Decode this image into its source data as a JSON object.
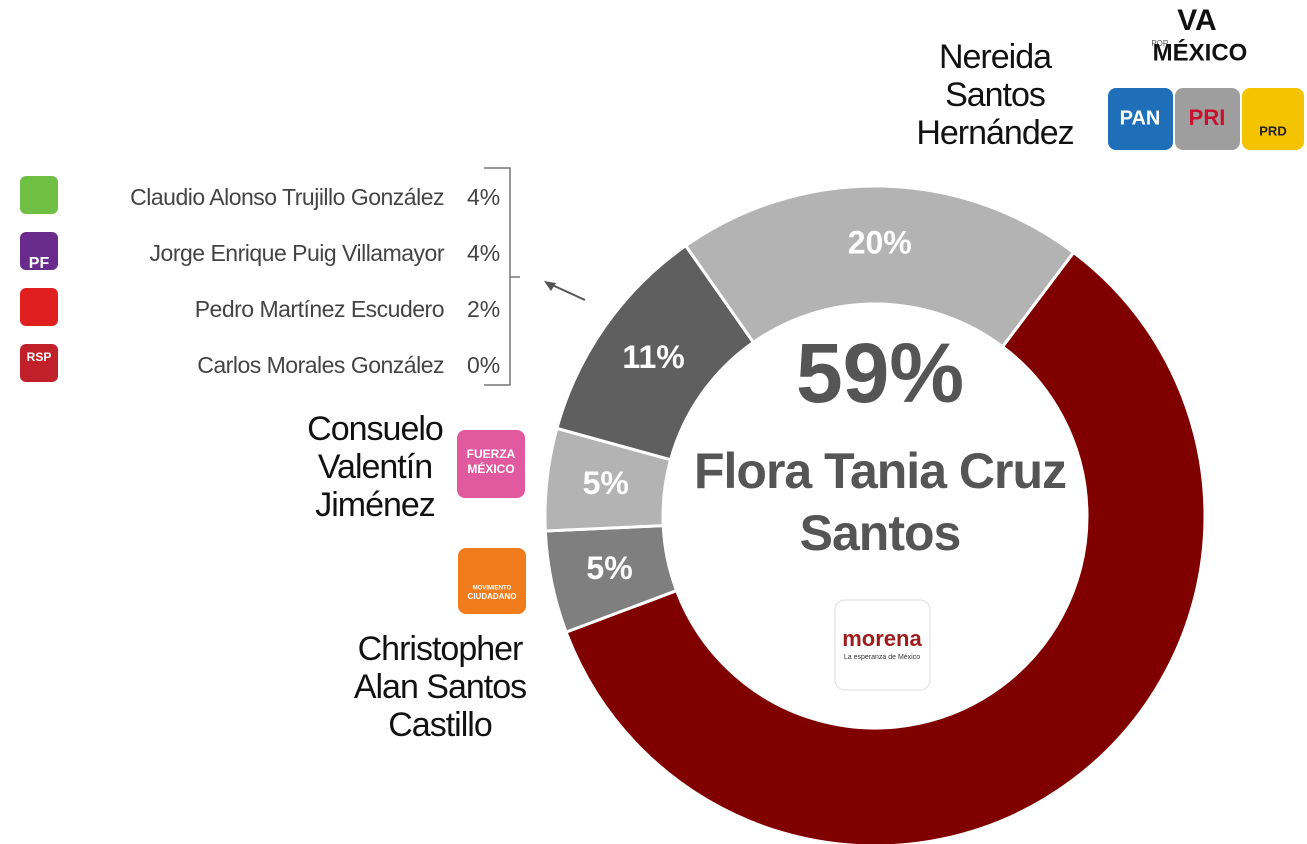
{
  "chart_data": {
    "type": "donut",
    "series": [
      {
        "name": "Flora Tania Cruz Santos",
        "color": "#800000"
      },
      {
        "name": "Christopher Alan Santos Castillo",
        "color": "#7f7f7f"
      },
      {
        "name": "Consuelo Valentín Jiménez",
        "color": "#b3b3b3"
      },
      {
        "name": null,
        "color": "#5f5f5f"
      },
      {
        "name": "Nereida Santos Hernández",
        "color": "#b3b3b3"
      }
    ],
    "values": [
      59,
      5,
      5,
      11,
      20
    ],
    "value_labels": [
      "59%",
      "5%",
      "5%",
      "11%",
      "20%"
    ],
    "others": {
      "names": [
        "Claudio Alonso Trujillo González",
        "Jorge Enrique Puig Villamayor",
        "Pedro Martínez Escudero",
        "Carlos Morales González"
      ],
      "values": [
        4,
        4,
        2,
        0
      ],
      "value_labels": [
        "4%",
        "4%",
        "2%",
        "0%"
      ],
      "colors": [
        "#6fbf44",
        "#6a2c8c",
        "#e02020",
        "#c0202a"
      ]
    },
    "logos": {
      "morena": [
        "morena",
        "La esperanza de México"
      ],
      "coalition": [
        "VA",
        "POR",
        "MÉXICO"
      ],
      "parties": [
        "PAN",
        "PRI",
        "PRD"
      ],
      "fuerza": [
        "FUERZA",
        "MÉXICO"
      ],
      "mc": [
        "MOVIMIENTO",
        "CIUDADANO"
      ],
      "small": [
        "PF",
        "RSP"
      ]
    }
  }
}
